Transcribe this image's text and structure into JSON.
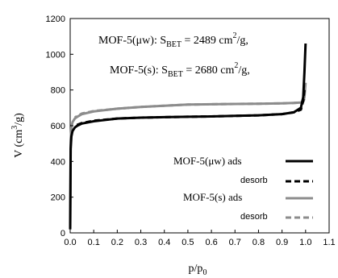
{
  "chart_data": {
    "type": "line",
    "title": "",
    "xlabel": "p/p",
    "xlabel_sub": "0",
    "ylabel": "V (cm",
    "ylabel_sup": "3",
    "ylabel_tail": "/g)",
    "xlim": [
      0,
      1.1
    ],
    "ylim": [
      0,
      1200
    ],
    "xticks": [
      0,
      0.1,
      0.2,
      0.3,
      0.4,
      0.5,
      0.6,
      0.7,
      0.8,
      0.9,
      1.0,
      1.1
    ],
    "xtick_labels": [
      "0.0",
      "0.1",
      "0.2",
      "0.3",
      "0.4",
      "0.5",
      "0.6",
      "0.7",
      "0.8",
      "0.9",
      "1.0",
      "1.1"
    ],
    "yticks": [
      0,
      200,
      400,
      600,
      800,
      1000,
      1200
    ],
    "ytick_labels": [
      "0",
      "200",
      "400",
      "600",
      "800",
      "1000",
      "1200"
    ],
    "grid": false,
    "legend_position": "bottom-right",
    "annotations": [
      {
        "pre": "MOF-5(μw): S",
        "sub": "BET",
        "mid": " = 2489 cm",
        "sup": "2",
        "post": "/g,"
      },
      {
        "pre": "MOF-5(s): S",
        "sub": "BET",
        "mid": " = 2680 cm",
        "sup": "2",
        "post": "/g,"
      }
    ],
    "legend": [
      {
        "label": "MOF-5(μw) ads",
        "color": "#000000",
        "dash": "solid",
        "small": false
      },
      {
        "label": "desorb",
        "color": "#000000",
        "dash": "dashed",
        "small": true
      },
      {
        "label": "MOF-5(s)   ads",
        "color": "#8c8c8c",
        "dash": "solid",
        "small": false
      },
      {
        "label": "desorb",
        "color": "#8c8c8c",
        "dash": "dashed",
        "small": true
      }
    ],
    "series": [
      {
        "name": "MOF-5(μw) ads",
        "color": "#000000",
        "dash": "solid",
        "x": [
          0.0,
          0.002,
          0.005,
          0.01,
          0.02,
          0.03,
          0.05,
          0.1,
          0.2,
          0.3,
          0.4,
          0.5,
          0.6,
          0.7,
          0.8,
          0.9,
          0.95,
          0.98,
          0.99,
          0.995,
          1.0
        ],
        "y": [
          20,
          470,
          540,
          570,
          590,
          600,
          612,
          625,
          640,
          645,
          648,
          650,
          652,
          655,
          658,
          665,
          675,
          700,
          760,
          900,
          1060
        ]
      },
      {
        "name": "MOF-5(μw) desorb",
        "color": "#000000",
        "dash": "dashed",
        "x": [
          0.995,
          0.99,
          0.98,
          0.95,
          0.9,
          0.8,
          0.7,
          0.6,
          0.5,
          0.4,
          0.3,
          0.2,
          0.1,
          0.05,
          0.03,
          0.02
        ],
        "y": [
          800,
          740,
          690,
          675,
          665,
          658,
          655,
          652,
          650,
          648,
          645,
          640,
          628,
          615,
          605,
          595
        ]
      },
      {
        "name": "MOF-5(s) ads",
        "color": "#8c8c8c",
        "dash": "solid",
        "x": [
          0.0,
          0.002,
          0.005,
          0.01,
          0.02,
          0.03,
          0.05,
          0.1,
          0.2,
          0.3,
          0.4,
          0.5,
          0.6,
          0.7,
          0.8,
          0.9,
          0.95,
          0.98,
          0.99,
          0.995,
          1.0
        ],
        "y": [
          20,
          520,
          590,
          620,
          640,
          650,
          665,
          680,
          695,
          705,
          712,
          718,
          720,
          722,
          723,
          725,
          727,
          730,
          735,
          760,
          840
        ]
      },
      {
        "name": "MOF-5(s) desorb",
        "color": "#8c8c8c",
        "dash": "dashed",
        "x": [
          0.995,
          0.99,
          0.98,
          0.95,
          0.9,
          0.8,
          0.7,
          0.6,
          0.5,
          0.4,
          0.3,
          0.2,
          0.1,
          0.05,
          0.03,
          0.02
        ],
        "y": [
          750,
          735,
          730,
          727,
          725,
          723,
          722,
          720,
          718,
          712,
          705,
          695,
          682,
          668,
          655,
          645
        ]
      }
    ]
  }
}
